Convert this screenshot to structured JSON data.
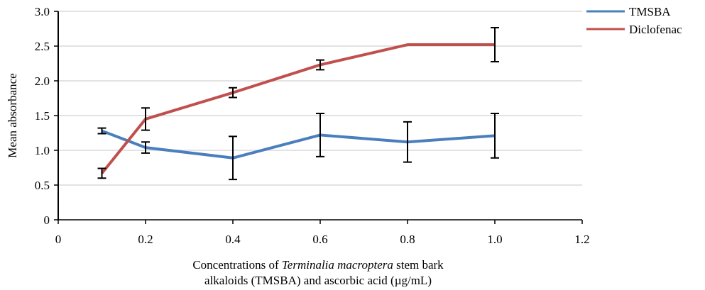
{
  "chart_data": {
    "type": "line",
    "ylabel": "Mean absorbance",
    "xlabel_line1_pre": "Concentrations of ",
    "xlabel_line1_italic": "Terminalia macroptera",
    "xlabel_line1_post": " stem bark",
    "xlabel_line2": "alkaloids (TMSBA) and ascorbic acid (µg/mL)",
    "xlim": [
      0,
      1.2
    ],
    "ylim": [
      0,
      3.0
    ],
    "xticks": [
      "0",
      "0.2",
      "0.4",
      "0.6",
      "0.8",
      "1.0",
      "1.2"
    ],
    "yticks": [
      "0",
      "0.5",
      "1.0",
      "1.5",
      "2.0",
      "2.5",
      "3.0"
    ],
    "grid": "horizontal",
    "legend_position": "top-right",
    "x": [
      0.1,
      0.2,
      0.4,
      0.6,
      0.8,
      1.0
    ],
    "series": [
      {
        "name": "TMSBA",
        "color": "#4a7fbd",
        "values": [
          1.28,
          1.04,
          0.89,
          1.22,
          1.12,
          1.21
        ],
        "errors": [
          0.04,
          0.08,
          0.31,
          0.31,
          0.29,
          0.32
        ]
      },
      {
        "name": "Diclofenac",
        "color": "#c0504d",
        "values": [
          0.67,
          1.45,
          1.83,
          2.23,
          2.52,
          2.52
        ],
        "errors": [
          0.07,
          0.16,
          0.07,
          0.07,
          0.0,
          0.245
        ]
      }
    ]
  }
}
